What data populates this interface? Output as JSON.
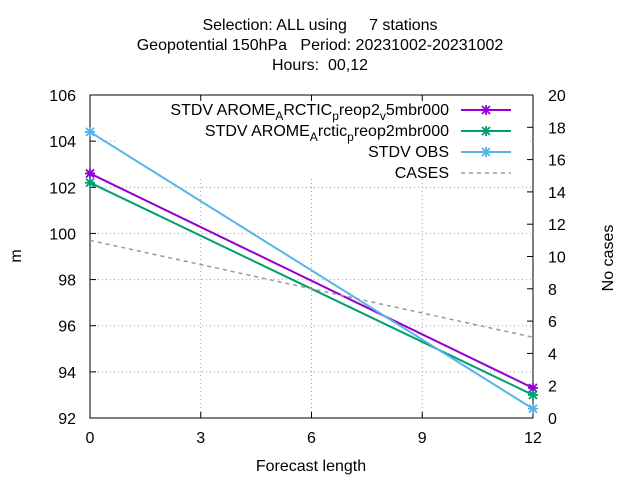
{
  "title_lines": [
    "Selection: ALL using     7 stations",
    "Geopotential 150hPa   Period: 20231002-20231002",
    "Hours:  00,12"
  ],
  "chart_data": {
    "type": "line",
    "xlabel": "Forecast length",
    "ylabel": "m",
    "y2label": "No cases",
    "xlim": [
      0,
      12
    ],
    "ylim": [
      92,
      106
    ],
    "y2lim": [
      0,
      20
    ],
    "xticks": [
      0,
      3,
      6,
      9,
      12
    ],
    "yticks": [
      92,
      94,
      96,
      98,
      100,
      102,
      104,
      106
    ],
    "y2ticks": [
      0,
      2,
      4,
      6,
      8,
      10,
      12,
      14,
      16,
      18,
      20
    ],
    "grid": true,
    "legend_position": "top-right",
    "series": [
      {
        "legend": [
          "STDV AROME",
          "A",
          "RCTIC",
          "p",
          "reop2",
          "v",
          "5mbr000"
        ],
        "color": "#9400d3",
        "marker": "x",
        "axis": "y",
        "x": [
          0,
          12
        ],
        "y": [
          102.6,
          93.3
        ]
      },
      {
        "legend": [
          "STDV AROME",
          "A",
          "rctic",
          "p",
          "reop2mbr000"
        ],
        "color": "#009e73",
        "marker": "x",
        "axis": "y",
        "x": [
          0,
          12
        ],
        "y": [
          102.2,
          93.0
        ]
      },
      {
        "legend": [
          "STDV OBS"
        ],
        "color": "#56b4e9",
        "marker": "x",
        "axis": "y",
        "x": [
          0,
          12
        ],
        "y": [
          104.4,
          92.4
        ]
      },
      {
        "legend": [
          "CASES"
        ],
        "color": "#999999",
        "marker": "none",
        "dashed": true,
        "axis": "y2",
        "x": [
          0,
          12
        ],
        "y": [
          11,
          5
        ]
      }
    ]
  }
}
